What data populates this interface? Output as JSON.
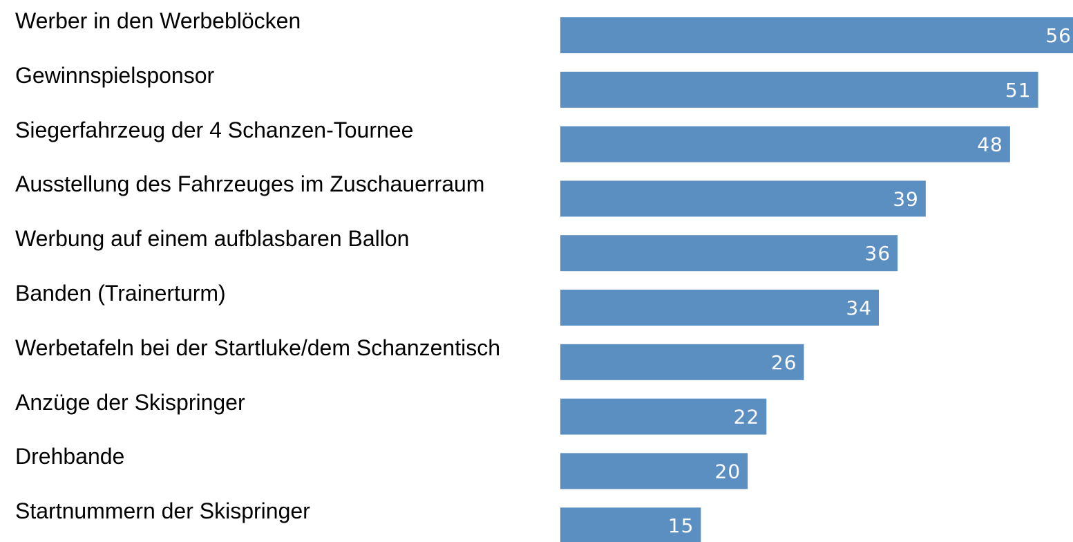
{
  "chart_data": {
    "type": "bar",
    "orientation": "horizontal",
    "categories": [
      "Werber in den Werbeblöcken",
      "Gewinnspielsponsor",
      "Siegerfahrzeug der 4 Schanzen-Tournee",
      "Ausstellung des Fahrzeuges im Zuschauerraum",
      "Werbung auf einem aufblasbaren Ballon",
      "Banden (Trainerturm)",
      "Werbetafeln bei der Startluke/dem Schanzentisch",
      "Anzüge der Skispringer",
      "Drehbande",
      "Startnummern der Skispringer"
    ],
    "values": [
      56,
      51,
      48,
      39,
      36,
      34,
      26,
      22,
      20,
      15
    ],
    "color": "#5b8ec1"
  }
}
